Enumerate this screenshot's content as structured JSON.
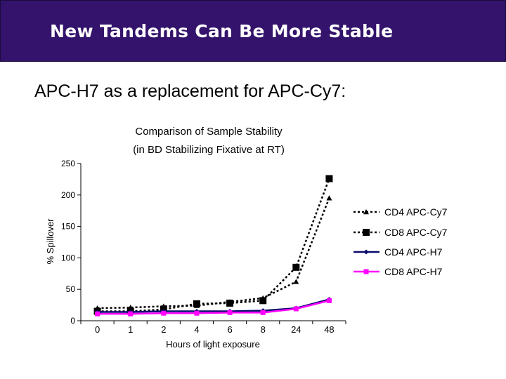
{
  "slide": {
    "title": "New Tandems Can Be More Stable",
    "subtitle": "APC-H7 as a replacement for APC-Cy7:"
  },
  "chart_data": {
    "type": "line",
    "title": "Comparison of Sample Stability",
    "subtitle": "(in BD Stabilizing Fixative at RT)",
    "xlabel": "Hours of light exposure",
    "ylabel": "% Spillover",
    "ylim": [
      0,
      250
    ],
    "yticks": [
      "0",
      "50",
      "100",
      "150",
      "200",
      "250"
    ],
    "categories": [
      "0",
      "1",
      "2",
      "4",
      "6",
      "8",
      "24",
      "48"
    ],
    "grid": false,
    "legend_position": "right",
    "series": [
      {
        "name": "CD4 APC-Cy7",
        "color": "#000000",
        "marker": "triangle",
        "dash": "dotted",
        "values": [
          20,
          21,
          23,
          24,
          30,
          36,
          62,
          195
        ]
      },
      {
        "name": "CD8 APC-Cy7",
        "color": "#000000",
        "marker": "square",
        "dash": "dotted",
        "values": [
          15,
          15,
          18,
          27,
          28,
          32,
          85,
          226
        ]
      },
      {
        "name": "CD4 APC-H7",
        "color": "#0a0a6e",
        "marker": "diamond",
        "dash": "solid",
        "values": [
          14,
          14,
          15,
          15,
          15,
          16,
          20,
          34
        ]
      },
      {
        "name": "CD8 APC-H7",
        "color": "#ff00ff",
        "marker": "square",
        "dash": "solid",
        "values": [
          11,
          11,
          12,
          12,
          13,
          13,
          19,
          32
        ]
      }
    ]
  }
}
